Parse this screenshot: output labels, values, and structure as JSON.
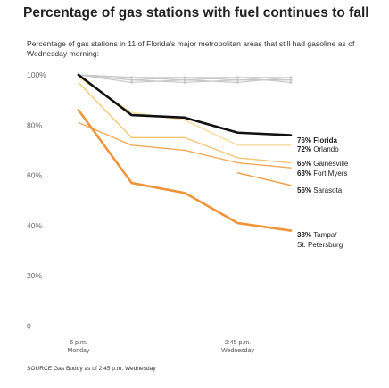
{
  "title": "Percentage of gas stations with fuel continues to fall",
  "subtitle": "Percentage of gas stations in 11 of Florida's major metropolitan areas that still had gasoline as of Wednesday morning:",
  "source": "SOURCE Gas Buddy as of 2:45 p.m. Wednesday",
  "chart_data": {
    "type": "line",
    "x": [
      0,
      1,
      2,
      3,
      4
    ],
    "ylim": [
      0,
      100
    ],
    "y_ticks": [
      "100%",
      "80%",
      "60%",
      "40%",
      "20%",
      "0"
    ],
    "y_tick_values": [
      100,
      80,
      60,
      40,
      20,
      0
    ],
    "x_ticks": [
      {
        "x": 0,
        "line1": "6 p.m.",
        "line2": "Monday"
      },
      {
        "x": 3,
        "line1": "2:45 p.m.",
        "line2": "Wednesday"
      }
    ],
    "grid": false,
    "series": [
      {
        "key": "g1",
        "values": [
          100,
          99,
          99,
          99,
          99
        ],
        "color": "#c8c8c8",
        "width": 1.2,
        "marker": true
      },
      {
        "key": "g2",
        "values": [
          100,
          98,
          99,
          98,
          98
        ],
        "color": "#c8c8c8",
        "width": 1.2,
        "marker": true
      },
      {
        "key": "g3",
        "values": [
          100,
          99,
          98,
          99,
          97
        ],
        "color": "#c8c8c8",
        "width": 1.2,
        "marker": true
      },
      {
        "key": "g4",
        "values": [
          100,
          97,
          98,
          97,
          99
        ],
        "color": "#c8c8c8",
        "width": 1.2,
        "marker": true
      },
      {
        "key": "g5",
        "values": [
          100,
          98,
          97,
          98,
          98
        ],
        "color": "#c8c8c8",
        "width": 1.2,
        "marker": true
      },
      {
        "key": "Orlando",
        "values": [
          99,
          85,
          82,
          72,
          72
        ],
        "color": "#f6dd9c",
        "width": 1.4,
        "label_pct": "72%",
        "label_name": "Orlando"
      },
      {
        "key": "Gainesville",
        "values": [
          97,
          75,
          75,
          67,
          65
        ],
        "color": "#f3c773",
        "width": 1.4,
        "label_pct": "65%",
        "label_name": "Gainesville"
      },
      {
        "key": "Fort Myers",
        "values": [
          81,
          72,
          70,
          65,
          63
        ],
        "color": "#f0aa58",
        "width": 1.4,
        "label_pct": "63%",
        "label_name": "Fort Myers"
      },
      {
        "key": "Sarasota",
        "values": [
          null,
          null,
          null,
          61,
          56
        ],
        "color": "#ee9b45",
        "width": 1.4,
        "label_pct": "56%",
        "label_name": "Sarasota"
      },
      {
        "key": "Tampa/St. Petersburg",
        "values": [
          86,
          57,
          53,
          41,
          38
        ],
        "color": "#f0943a",
        "width": 2.6,
        "label_pct": "38%",
        "label_name": "Tampa/",
        "label_name2": "St. Petersburg"
      },
      {
        "key": "Florida",
        "values": [
          100,
          84,
          83,
          77,
          76
        ],
        "color": "#111111",
        "width": 2.6,
        "label_pct": "76%",
        "label_name": "Florida",
        "bold_name": true
      }
    ]
  }
}
